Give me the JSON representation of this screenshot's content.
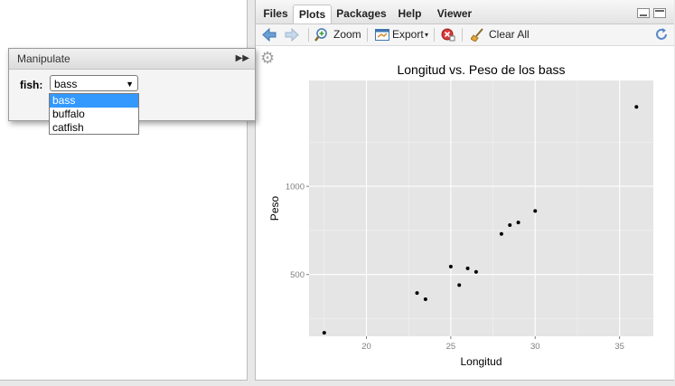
{
  "tabs": [
    {
      "label": "Files",
      "active": false
    },
    {
      "label": "Plots",
      "active": true
    },
    {
      "label": "Packages",
      "active": false
    },
    {
      "label": "Help",
      "active": false
    },
    {
      "label": "Viewer",
      "active": false
    }
  ],
  "toolbar": {
    "zoom_label": "Zoom",
    "export_label": "Export",
    "clear_all_label": "Clear All"
  },
  "manipulate": {
    "title": "Manipulate",
    "fish_label": "fish:",
    "selected": "bass",
    "options": [
      "bass",
      "buffalo",
      "catfish"
    ]
  },
  "chart_data": {
    "type": "scatter",
    "title": "Longitud vs. Peso de los bass",
    "xlabel": "Longitud",
    "ylabel": "Peso",
    "xlim": [
      16.6,
      37.0
    ],
    "ylim": [
      150,
      1600
    ],
    "xticks": [
      20,
      25,
      30,
      35
    ],
    "yticks": [
      500,
      1000
    ],
    "grid": true,
    "background": "#e5e5e5",
    "point_color": "#000000",
    "points": [
      {
        "x": 17.5,
        "y": 170
      },
      {
        "x": 23.0,
        "y": 395
      },
      {
        "x": 23.5,
        "y": 360
      },
      {
        "x": 25.0,
        "y": 545
      },
      {
        "x": 25.5,
        "y": 440
      },
      {
        "x": 26.0,
        "y": 535
      },
      {
        "x": 26.5,
        "y": 515
      },
      {
        "x": 28.0,
        "y": 730
      },
      {
        "x": 28.5,
        "y": 780
      },
      {
        "x": 29.0,
        "y": 795
      },
      {
        "x": 30.0,
        "y": 860
      },
      {
        "x": 36.0,
        "y": 1450
      }
    ]
  }
}
